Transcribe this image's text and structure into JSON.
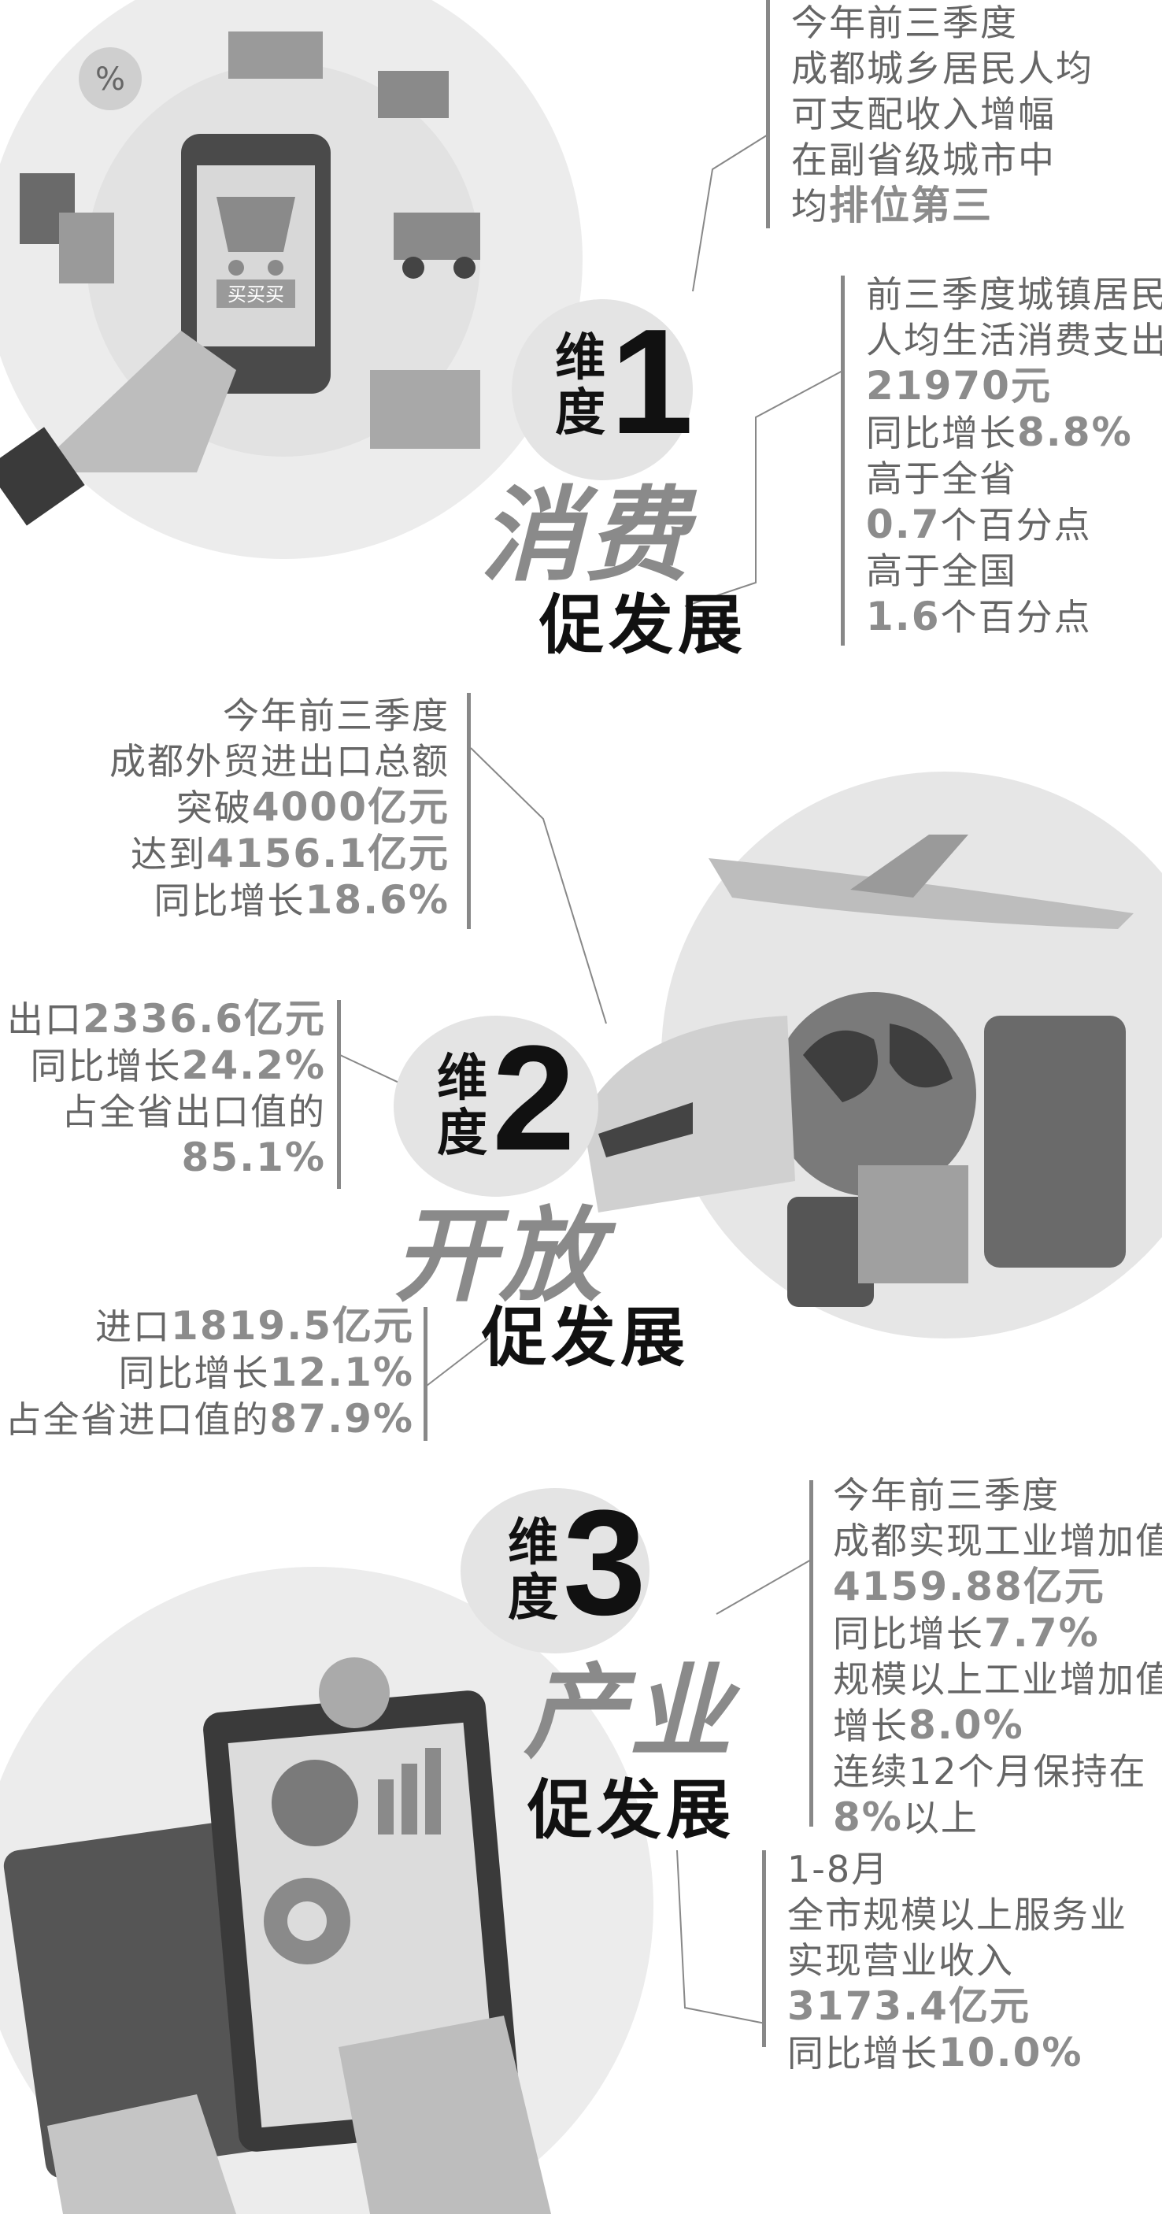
{
  "section1": {
    "dimension_label": "维度",
    "dimension_number": "1",
    "theme": "消费",
    "subtitle": "促发展",
    "illustration_text": "买买买",
    "illustration_percent": "%",
    "block1": [
      [
        {
          "t": "今年前三季度"
        }
      ],
      [
        {
          "t": "成都城乡居民人均"
        }
      ],
      [
        {
          "t": "可支配收入增幅"
        }
      ],
      [
        {
          "t": "在副省级城市中"
        }
      ],
      [
        {
          "t": "均"
        },
        {
          "b": "排位第三"
        }
      ]
    ],
    "block2": [
      [
        {
          "t": "前三季度城镇居民"
        }
      ],
      [
        {
          "t": "人均生活消费支出"
        }
      ],
      [
        {
          "b": "21970元"
        }
      ],
      [
        {
          "t": "同比增长"
        },
        {
          "b": "8.8%"
        }
      ],
      [
        {
          "t": "高于全省"
        }
      ],
      [
        {
          "b": "0.7"
        },
        {
          "t": "个百分点"
        }
      ],
      [
        {
          "t": "高于全国"
        }
      ],
      [
        {
          "b": "1.6"
        },
        {
          "t": "个百分点"
        }
      ]
    ]
  },
  "section2": {
    "dimension_label": "维度",
    "dimension_number": "2",
    "theme": "开放",
    "subtitle": "促发展",
    "block1": [
      [
        {
          "t": "今年前三季度"
        }
      ],
      [
        {
          "t": "成都外贸进出口总额"
        }
      ],
      [
        {
          "t": "突破"
        },
        {
          "b": "4000亿元"
        }
      ],
      [
        {
          "t": "达到"
        },
        {
          "b": "4156.1亿元"
        }
      ],
      [
        {
          "t": "同比增长"
        },
        {
          "b": "18.6%"
        }
      ]
    ],
    "block2": [
      [
        {
          "t": "出口"
        },
        {
          "b": "2336.6亿元"
        }
      ],
      [
        {
          "t": "同比增长"
        },
        {
          "b": "24.2%"
        }
      ],
      [
        {
          "t": "占全省出口值的"
        }
      ],
      [
        {
          "b": "85.1%"
        }
      ]
    ],
    "block3": [
      [
        {
          "t": "进口"
        },
        {
          "b": "1819.5亿元"
        }
      ],
      [
        {
          "t": "同比增长"
        },
        {
          "b": "12.1%"
        }
      ],
      [
        {
          "t": "占全省进口值的"
        },
        {
          "b": "87.9%"
        }
      ]
    ]
  },
  "section3": {
    "dimension_label": "维度",
    "dimension_number": "3",
    "theme": "产业",
    "subtitle": "促发展",
    "block1": [
      [
        {
          "t": "今年前三季度"
        }
      ],
      [
        {
          "t": "成都实现工业增加值"
        }
      ],
      [
        {
          "b": "4159.88亿元"
        }
      ],
      [
        {
          "t": "同比增长"
        },
        {
          "b": "7.7%"
        }
      ],
      [
        {
          "t": "规模以上工业增加值"
        }
      ],
      [
        {
          "t": "增长"
        },
        {
          "b": "8.0%"
        }
      ],
      [
        {
          "t": "连续12个月保持在"
        }
      ],
      [
        {
          "b": "8%"
        },
        {
          "t": "以上"
        }
      ]
    ],
    "block2": [
      [
        {
          "t": "1-8月"
        }
      ],
      [
        {
          "t": "全市规模以上服务业"
        }
      ],
      [
        {
          "t": "实现营业收入"
        }
      ],
      [
        {
          "b": "3173.4亿元"
        }
      ],
      [
        {
          "t": "同比增长"
        },
        {
          "b": "10.0%"
        }
      ]
    ]
  },
  "colors": {
    "text": "#666666",
    "highlight": "#8c8c8c",
    "title": "#111111",
    "bubble": "#e4e4e4"
  }
}
